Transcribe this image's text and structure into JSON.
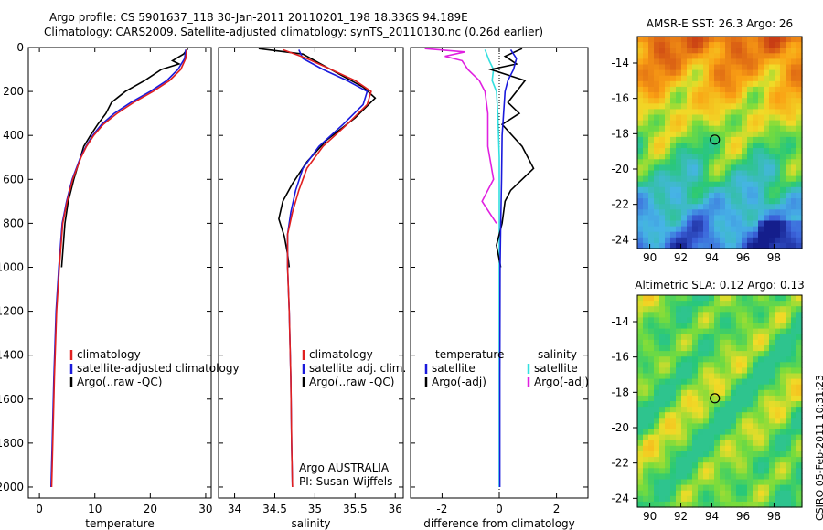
{
  "title_line1": "Argo profile: CS 5901637_118 30-Jan-2011 20110201_198 18.336S 94.189E",
  "title_line2": "Climatology: CARS2009. Satellite-adjusted climatology: synTS_20110130.nc (0.26d earlier)",
  "side_stamp": "CSIRO 05-Feb-2011 10:31:23",
  "credits": {
    "line1": "Argo AUSTRALIA",
    "line2": "PI: Susan Wijffels"
  },
  "colors": {
    "climatology": "#e02020",
    "satellite": "#1a1adc",
    "argo": "#000000",
    "sal_satellite": "#33e0e0",
    "sal_argo": "#e020e0"
  },
  "chart_data": [
    {
      "type": "line",
      "xlabel": "temperature",
      "xlim": [
        -2,
        31
      ],
      "ylim": [
        2050,
        0
      ],
      "xticks": [
        0,
        10,
        20,
        30
      ],
      "yticks": [
        0,
        200,
        400,
        600,
        800,
        1000,
        1200,
        1400,
        1600,
        1800,
        2000
      ],
      "legend": [
        "climatology",
        "satellite-adjusted climatology",
        "Argo(..raw -QC)"
      ],
      "series": [
        {
          "name": "climatology",
          "color": "#e02020",
          "x": [
            26.6,
            26.4,
            25.5,
            23.5,
            20.5,
            17.0,
            14.0,
            11.5,
            9.8,
            8.5,
            7.5,
            6.0,
            5.0,
            4.2,
            3.6,
            3.1,
            2.7,
            2.4,
            2.2
          ],
          "y": [
            10,
            50,
            100,
            150,
            200,
            250,
            300,
            350,
            400,
            450,
            500,
            600,
            700,
            800,
            1000,
            1200,
            1500,
            1800,
            2000
          ]
        },
        {
          "name": "satellite-adjusted climatology",
          "color": "#1a1adc",
          "x": [
            26.4,
            26.2,
            25.0,
            23.0,
            20.0,
            16.5,
            13.5,
            11.2,
            9.6,
            8.4,
            7.4,
            5.9,
            4.9,
            4.1,
            3.5,
            3.0,
            2.6,
            2.3,
            2.1
          ],
          "y": [
            10,
            50,
            100,
            150,
            200,
            250,
            300,
            350,
            400,
            450,
            500,
            600,
            700,
            800,
            1000,
            1200,
            1500,
            1800,
            2000
          ]
        },
        {
          "name": "Argo(..raw -QC)",
          "color": "#000000",
          "x": [
            26.8,
            26.0,
            24.0,
            25.2,
            22.0,
            19.0,
            15.5,
            13.0,
            12.0,
            10.5,
            9.2,
            8.0,
            7.4,
            6.8,
            6.2,
            5.7,
            5.2,
            4.9,
            4.6,
            4.3,
            4.0
          ],
          "y": [
            5,
            30,
            60,
            75,
            100,
            150,
            200,
            250,
            300,
            350,
            400,
            450,
            500,
            550,
            600,
            650,
            700,
            750,
            800,
            900,
            1000
          ]
        }
      ]
    },
    {
      "type": "line",
      "xlabel": "salinity",
      "xlim": [
        33.8,
        36.1
      ],
      "ylim": [
        2050,
        0
      ],
      "xticks": [
        34,
        34.5,
        35,
        35.5,
        36
      ],
      "legend": [
        "climatology",
        "satellite adj. clim.",
        "Argo(..raw -QC)"
      ],
      "series": [
        {
          "name": "climatology",
          "color": "#e02020",
          "x": [
            34.6,
            34.9,
            35.2,
            35.5,
            35.7,
            35.65,
            35.4,
            35.1,
            34.9,
            34.8,
            34.72,
            34.66,
            34.66,
            34.68,
            34.7,
            34.71,
            34.72
          ],
          "y": [
            10,
            50,
            100,
            150,
            200,
            260,
            350,
            450,
            550,
            650,
            750,
            850,
            1000,
            1200,
            1500,
            1800,
            2000
          ]
        },
        {
          "name": "satellite adj. clim.",
          "color": "#1a1adc",
          "x": [
            34.8,
            34.85,
            35.1,
            35.4,
            35.65,
            35.6,
            35.35,
            35.05,
            34.85,
            34.76,
            34.7,
            34.66,
            34.66,
            34.68,
            34.7,
            34.71,
            34.72
          ],
          "y": [
            10,
            50,
            100,
            150,
            200,
            260,
            350,
            450,
            550,
            650,
            750,
            850,
            1000,
            1200,
            1500,
            1800,
            2000
          ]
        },
        {
          "name": "Argo(..raw -QC)",
          "color": "#000000",
          "x": [
            34.3,
            34.85,
            35.0,
            35.3,
            35.6,
            35.75,
            35.5,
            35.15,
            34.9,
            34.72,
            34.6,
            34.55,
            34.62,
            34.66,
            34.68
          ],
          "y": [
            5,
            30,
            60,
            120,
            180,
            230,
            320,
            420,
            520,
            620,
            700,
            780,
            860,
            940,
            1000
          ]
        }
      ]
    },
    {
      "type": "line",
      "xlabel": "difference from climatology",
      "xlim": [
        -3.1,
        3.1
      ],
      "ylim": [
        2050,
        0
      ],
      "xticks": [
        -2,
        0,
        2
      ],
      "legend": [
        "temperature",
        "satellite",
        "Argo(-adj)",
        "salinity",
        "satellite",
        "Argo(-adj)"
      ],
      "series": [
        {
          "name": "satellite",
          "color": "#1a1adc",
          "x": [
            0.4,
            0.6,
            0.5,
            0.3,
            0.2,
            0.15,
            0.1,
            0.08,
            0.05,
            0.03,
            0.02,
            0.02
          ],
          "y": [
            10,
            50,
            100,
            150,
            200,
            300,
            400,
            600,
            800,
            1000,
            1500,
            2000
          ]
        },
        {
          "name": "Argo(-adj)",
          "color": "#000000",
          "x": [
            0.8,
            0.2,
            0.6,
            -0.3,
            0.9,
            0.6,
            0.3,
            0.7,
            0.1,
            0.8,
            1.2,
            0.4,
            0.2,
            0.1,
            -0.1,
            0.05
          ],
          "y": [
            5,
            40,
            75,
            100,
            150,
            200,
            250,
            300,
            350,
            450,
            550,
            650,
            700,
            800,
            900,
            1000
          ]
        },
        {
          "name": "satellite",
          "color": "#33e0e0",
          "x": [
            -0.5,
            -0.35,
            -0.2,
            -0.25,
            -0.1,
            -0.05,
            0,
            0,
            0,
            0
          ],
          "y": [
            10,
            60,
            100,
            150,
            200,
            300,
            500,
            800,
            1200,
            2000
          ]
        },
        {
          "name": "Argo(-adj)",
          "color": "#e020e0",
          "x": [
            -2.6,
            -1.2,
            -1.9,
            -1.3,
            -1.1,
            -0.7,
            -0.5,
            -0.4,
            -0.4,
            -0.2,
            -0.6,
            -0.3,
            -0.1
          ],
          "y": [
            5,
            20,
            40,
            60,
            100,
            150,
            200,
            300,
            450,
            600,
            700,
            760,
            800
          ]
        }
      ]
    },
    {
      "type": "heatmap",
      "title": "AMSR-E SST: 26.3 Argo: 26",
      "xlim": [
        89.2,
        99.8
      ],
      "ylim": [
        -24.5,
        -12.5
      ],
      "xticks": [
        90,
        92,
        94,
        96,
        98
      ],
      "yticks": [
        -14,
        -16,
        -18,
        -20,
        -22,
        -24
      ],
      "marker": {
        "lon": 94.189,
        "lat": -18.336
      }
    },
    {
      "type": "heatmap",
      "title": "Altimetric SLA: 0.12 Argo: 0.13",
      "xlim": [
        89.2,
        99.8
      ],
      "ylim": [
        -24.5,
        -12.5
      ],
      "xticks": [
        90,
        92,
        94,
        96,
        98
      ],
      "yticks": [
        -14,
        -16,
        -18,
        -20,
        -22,
        -24
      ],
      "marker": {
        "lon": 94.189,
        "lat": -18.336
      }
    }
  ]
}
